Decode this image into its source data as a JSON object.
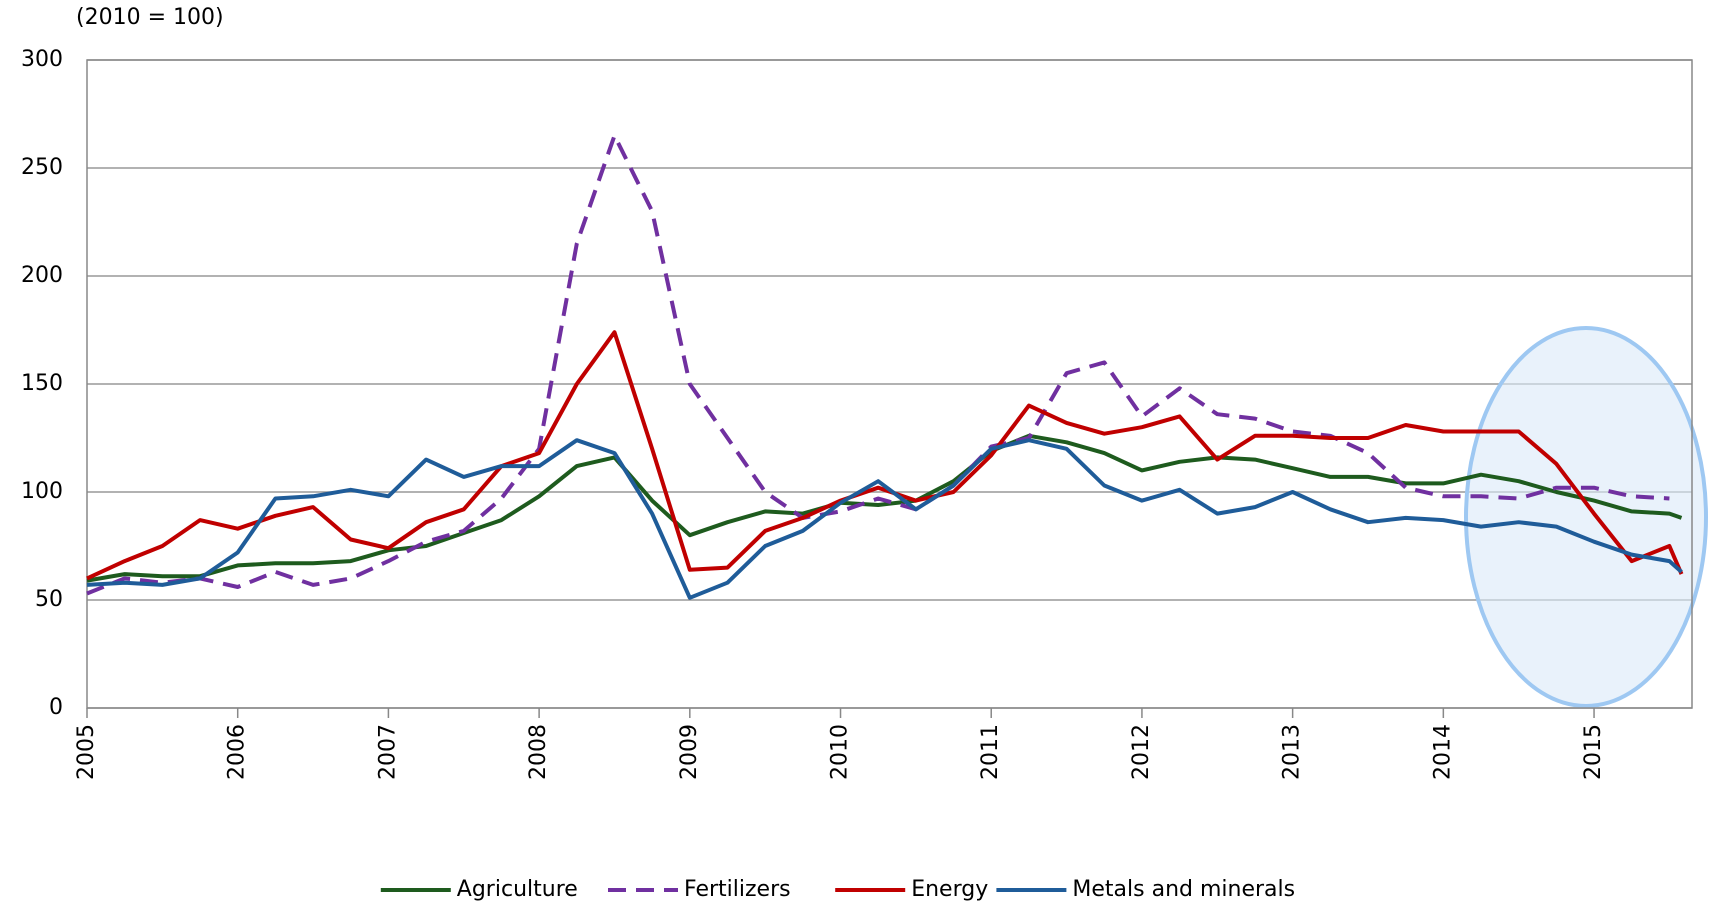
{
  "chart_data": {
    "type": "line",
    "subtitle": "(2010 = 100)",
    "x": [
      2005.0,
      2005.25,
      2005.5,
      2005.75,
      2006.0,
      2006.25,
      2006.5,
      2006.75,
      2007.0,
      2007.25,
      2007.5,
      2007.75,
      2008.0,
      2008.25,
      2008.5,
      2008.75,
      2009.0,
      2009.25,
      2009.5,
      2009.75,
      2010.0,
      2010.25,
      2010.5,
      2010.75,
      2011.0,
      2011.25,
      2011.5,
      2011.75,
      2012.0,
      2012.25,
      2012.5,
      2012.75,
      2013.0,
      2013.25,
      2013.5,
      2013.75,
      2014.0,
      2014.25,
      2014.5,
      2014.75,
      2015.0,
      2015.25,
      2015.5,
      2015.58
    ],
    "series": [
      {
        "name": "Agriculture",
        "color": "#1e5b1e",
        "dashed": false,
        "values": [
          59,
          62,
          61,
          61,
          66,
          67,
          67,
          68,
          73,
          75,
          81,
          87,
          98,
          112,
          116,
          96,
          80,
          86,
          91,
          90,
          95,
          94,
          96,
          105,
          119,
          126,
          123,
          118,
          110,
          114,
          116,
          115,
          111,
          107,
          107,
          104,
          104,
          108,
          105,
          100,
          96,
          91,
          90,
          88
        ]
      },
      {
        "name": "Fertilizers",
        "color": "#7030a0",
        "dashed": true,
        "values": [
          53,
          60,
          58,
          60,
          56,
          63,
          57,
          60,
          68,
          77,
          82,
          97,
          120,
          215,
          265,
          230,
          150,
          125,
          100,
          88,
          91,
          97,
          92,
          103,
          121,
          125,
          155,
          160,
          135,
          148,
          136,
          134,
          128,
          126,
          118,
          102,
          98,
          98,
          97,
          102,
          102,
          98,
          97,
          null
        ]
      },
      {
        "name": "Energy",
        "color": "#c00000",
        "dashed": false,
        "values": [
          60,
          68,
          75,
          87,
          83,
          89,
          93,
          78,
          74,
          86,
          92,
          112,
          118,
          150,
          174,
          120,
          64,
          65,
          82,
          88,
          96,
          102,
          96,
          100,
          117,
          140,
          132,
          127,
          130,
          135,
          115,
          126,
          126,
          125,
          125,
          131,
          128,
          128,
          128,
          113,
          90,
          68,
          75,
          62
        ]
      },
      {
        "name": "Metals and minerals",
        "color": "#1f5c99",
        "dashed": false,
        "values": [
          57,
          58,
          57,
          60,
          72,
          97,
          98,
          101,
          98,
          115,
          107,
          112,
          112,
          124,
          118,
          90,
          51,
          58,
          75,
          82,
          95,
          105,
          92,
          103,
          120,
          124,
          120,
          103,
          96,
          101,
          90,
          93,
          100,
          92,
          86,
          88,
          87,
          84,
          86,
          84,
          77,
          71,
          68,
          63
        ]
      }
    ],
    "xlim": [
      2005,
      2015.65
    ],
    "xticks": [
      2005,
      2006,
      2007,
      2008,
      2009,
      2010,
      2011,
      2012,
      2013,
      2014,
      2015
    ],
    "ylim": [
      0,
      300
    ],
    "yticks": [
      0,
      50,
      100,
      150,
      200,
      250,
      300
    ],
    "grid": true,
    "legend": "bottom"
  }
}
